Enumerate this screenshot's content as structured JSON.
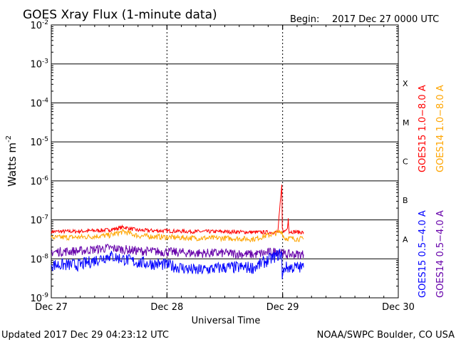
{
  "header": {
    "title": "GOES Xray Flux (1-minute data)",
    "begin_label": "Begin:",
    "begin_value": "2017 Dec 27 0000 UTC"
  },
  "footer": {
    "updated": "Updated 2017 Dec 29 04:23:12 UTC",
    "credit": "NOAA/SWPC Boulder, CO USA"
  },
  "colors": {
    "goes15_long": "#ff0000",
    "goes14_long": "#ffa500",
    "goes15_short": "#0000ff",
    "goes14_short": "#6600aa"
  },
  "chart_data": {
    "type": "line",
    "xlabel": "Universal Time",
    "ylabel_base": "Watts m",
    "ylabel_exp": "-2",
    "yscale": "log",
    "ylim": [
      1e-09,
      0.01
    ],
    "xlim": [
      "2017-12-27T00:00",
      "2017-12-30T00:00"
    ],
    "grid": "horizontal",
    "x_ticks": [
      {
        "t": "2017-12-27T00:00",
        "label": "Dec 27"
      },
      {
        "t": "2017-12-28T00:00",
        "label": "Dec 28"
      },
      {
        "t": "2017-12-29T00:00",
        "label": "Dec 29"
      },
      {
        "t": "2017-12-30T00:00",
        "label": "Dec 30"
      }
    ],
    "y_ticks": [
      {
        "value": 0.01,
        "base": "10",
        "exp": "-2"
      },
      {
        "value": 0.001,
        "base": "10",
        "exp": "-3"
      },
      {
        "value": 0.0001,
        "base": "10",
        "exp": "-4"
      },
      {
        "value": 1e-05,
        "base": "10",
        "exp": "-5"
      },
      {
        "value": 1e-06,
        "base": "10",
        "exp": "-6"
      },
      {
        "value": 1e-07,
        "base": "10",
        "exp": "-7"
      },
      {
        "value": 1e-08,
        "base": "10",
        "exp": "-8"
      },
      {
        "value": 1e-09,
        "base": "10",
        "exp": "-9"
      }
    ],
    "flare_classes": [
      {
        "label": "X",
        "lower": 0.0001,
        "upper": 0.001
      },
      {
        "label": "M",
        "lower": 1e-05,
        "upper": 0.0001
      },
      {
        "label": "C",
        "lower": 1e-06,
        "upper": 1e-05
      },
      {
        "label": "B",
        "lower": 1e-07,
        "upper": 1e-06
      },
      {
        "label": "A",
        "lower": 1e-08,
        "upper": 1e-07
      }
    ],
    "legend": {
      "placement": "right",
      "long": [
        {
          "name": "GOES15 1.0−8.0 A",
          "color": "#ff0000"
        },
        {
          "name": "GOES14 1.0−8.0 A",
          "color": "#ffa500"
        }
      ],
      "short": [
        {
          "name": "GOES15 0.5−4.0 A",
          "color": "#0000ff"
        },
        {
          "name": "GOES14 0.5−4.0 A",
          "color": "#6600aa"
        }
      ]
    },
    "series": [
      {
        "name": "GOES15 1.0−8.0 A",
        "color": "#ff0000",
        "x": [
          "2017-12-27T00:00",
          "2017-12-27T06:00",
          "2017-12-27T12:00",
          "2017-12-27T15:00",
          "2017-12-27T18:00",
          "2017-12-28T00:00",
          "2017-12-28T06:00",
          "2017-12-28T12:00",
          "2017-12-28T18:00",
          "2017-12-28T23:00",
          "2017-12-28T23:50",
          "2017-12-28T23:53",
          "2017-12-28T23:56",
          "2017-12-29T00:20",
          "2017-12-29T01:00",
          "2017-12-29T01:10",
          "2017-12-29T01:20",
          "2017-12-29T04:20"
        ],
        "y": [
          5e-08,
          5.1e-08,
          5.5e-08,
          6.5e-08,
          5.4e-08,
          5.2e-08,
          5e-08,
          5e-08,
          4.8e-08,
          4.8e-08,
          8e-07,
          2.5e-07,
          6e-08,
          5e-08,
          6e-08,
          1.1e-07,
          5e-08,
          4.8e-08
        ]
      },
      {
        "name": "GOES14 1.0−8.0 A",
        "color": "#ffa500",
        "x": [
          "2017-12-27T00:00",
          "2017-12-27T06:00",
          "2017-12-27T12:00",
          "2017-12-27T15:00",
          "2017-12-27T18:00",
          "2017-12-28T00:00",
          "2017-12-28T06:00",
          "2017-12-28T12:00",
          "2017-12-28T18:00",
          "2017-12-28T23:50",
          "2017-12-29T00:20",
          "2017-12-29T04:20"
        ],
        "y": [
          3.5e-08,
          3.6e-08,
          4e-08,
          5e-08,
          3.9e-08,
          3.6e-08,
          3.4e-08,
          3.4e-08,
          3.2e-08,
          5e-08,
          3.4e-08,
          3.2e-08
        ]
      },
      {
        "name": "GOES14 0.5−4.0 A",
        "color": "#6600aa",
        "x": [
          "2017-12-27T00:00",
          "2017-12-27T06:00",
          "2017-12-27T12:00",
          "2017-12-27T18:00",
          "2017-12-28T00:00",
          "2017-12-28T06:00",
          "2017-12-28T12:00",
          "2017-12-28T18:00",
          "2017-12-28T23:50",
          "2017-12-29T00:20",
          "2017-12-29T04:20"
        ],
        "y": [
          1.5e-08,
          1.6e-08,
          1.9e-08,
          1.6e-08,
          1.5e-08,
          1.4e-08,
          1.4e-08,
          1.3e-08,
          1.6e-08,
          1.3e-08,
          1.3e-08
        ]
      },
      {
        "name": "GOES15 0.5−4.0 A",
        "color": "#0000ff",
        "x": [
          "2017-12-27T00:00",
          "2017-12-27T06:00",
          "2017-12-27T12:00",
          "2017-12-27T18:00",
          "2017-12-28T00:00",
          "2017-12-28T06:00",
          "2017-12-28T12:00",
          "2017-12-28T18:00",
          "2017-12-28T23:50",
          "2017-12-28T23:55",
          "2017-12-29T00:20",
          "2017-12-29T04:20"
        ],
        "y": [
          7e-09,
          7e-09,
          1.2e-08,
          8e-09,
          7e-09,
          5e-09,
          6e-09,
          6e-09,
          1.4e-08,
          3e-09,
          6e-09,
          6e-09
        ]
      }
    ]
  }
}
